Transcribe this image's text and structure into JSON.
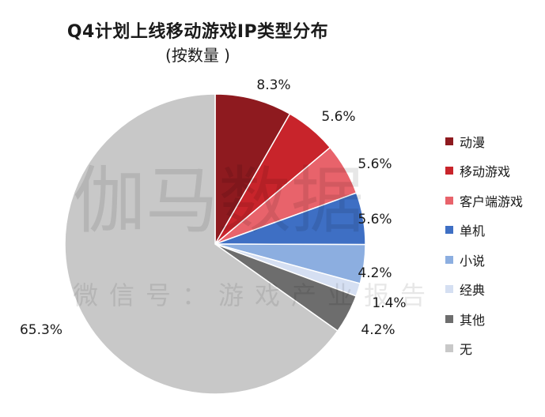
{
  "chart_data": {
    "type": "pie",
    "title": "Q4计划上线移动游戏IP类型分布",
    "subtitle": "(按数量 )",
    "slices": [
      {
        "label": "动漫",
        "value": 8.3,
        "value_label": "8.3%",
        "color": "#8e1a1f"
      },
      {
        "label": "移动游戏",
        "value": 5.6,
        "value_label": "5.6%",
        "color": "#c8242b"
      },
      {
        "label": "客户端游戏",
        "value": 5.6,
        "value_label": "5.6%",
        "color": "#e8636b"
      },
      {
        "label": "单机",
        "value": 5.6,
        "value_label": "5.6%",
        "color": "#3e6fc4"
      },
      {
        "label": "小说",
        "value": 4.2,
        "value_label": "4.2%",
        "color": "#8caee0"
      },
      {
        "label": "经典",
        "value": 1.4,
        "value_label": "1.4%",
        "color": "#d5dff2"
      },
      {
        "label": "其他",
        "value": 4.2,
        "value_label": "4.2%",
        "color": "#6d6d6d"
      },
      {
        "label": "无",
        "value": 65.3,
        "value_label": "65.3%",
        "color": "#c8c8c8"
      }
    ],
    "legend_position": "right",
    "start_angle": "12 o'clock",
    "direction": "clockwise"
  },
  "watermark": {
    "main": "伽马数据",
    "sub": "微信号：游戏产业报告"
  }
}
